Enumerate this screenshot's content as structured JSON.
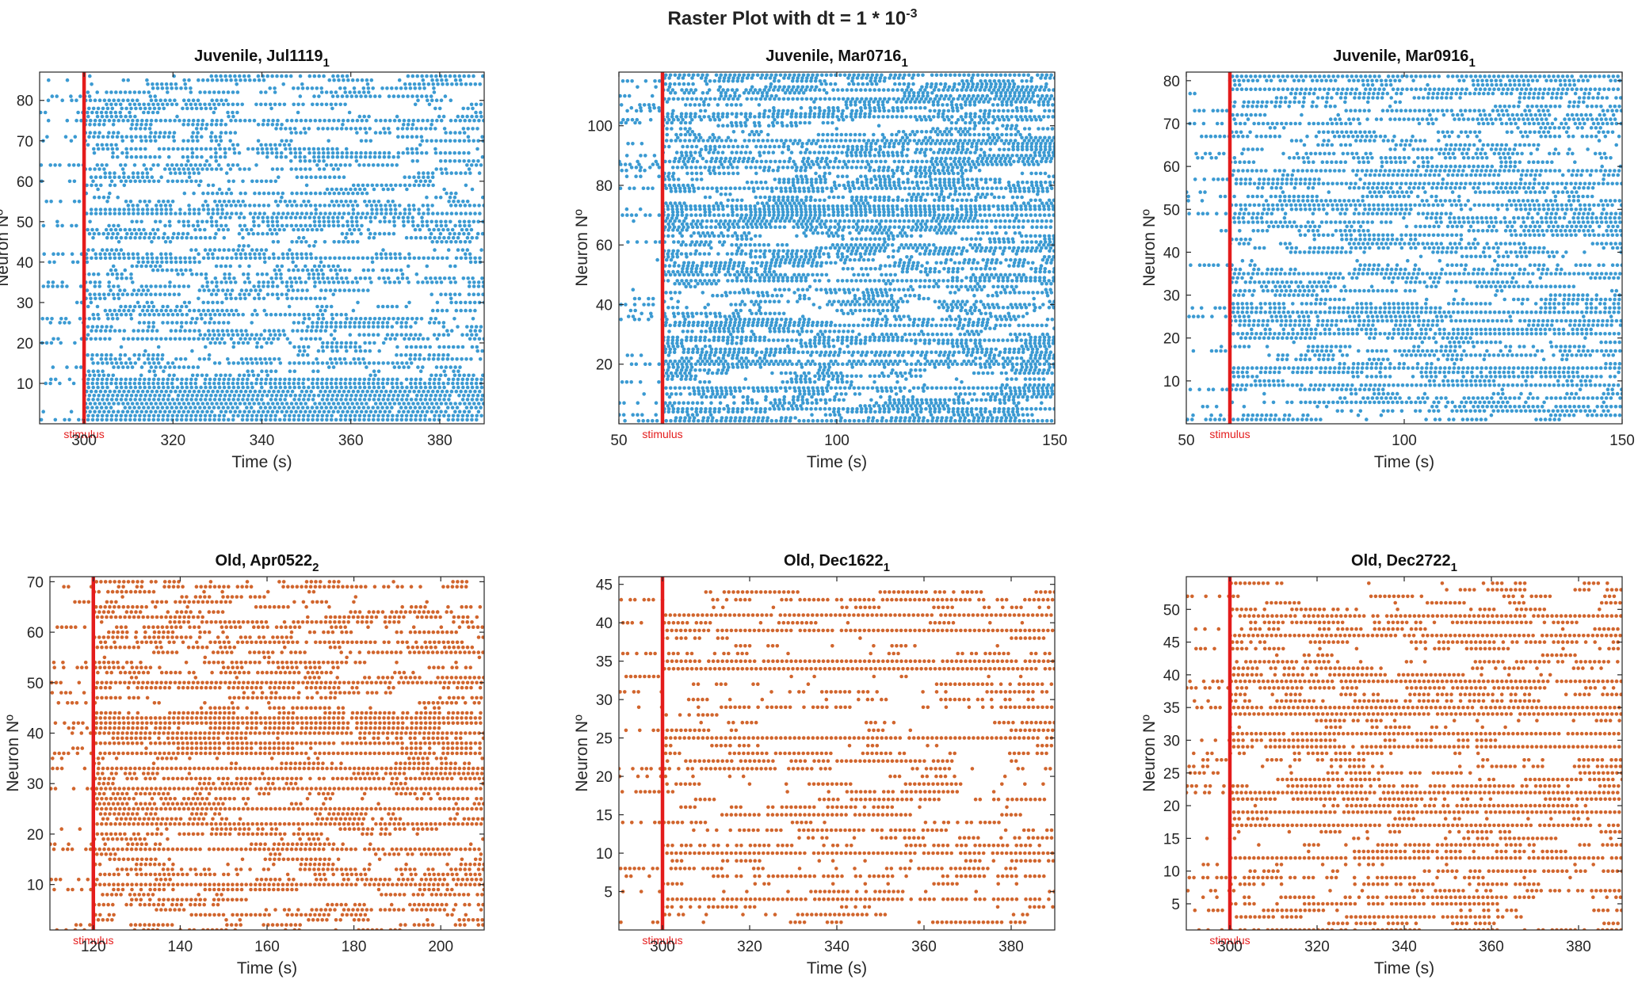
{
  "figure": {
    "title_main": "Raster Plot with dt = 1 * 10",
    "title_exp": "-3",
    "spike_colors": {
      "juvenile": "#3b9ad2",
      "old": "#d1652d"
    },
    "stimulus_color": "#e41c1c"
  },
  "chart_data": [
    {
      "type": "scatter",
      "title": "Juvenile, Jul1119",
      "title_sub": "1",
      "xlabel": "Time (s)",
      "ylabel": "Neuron Nº",
      "xlim": [
        290,
        390
      ],
      "ylim": [
        0,
        87
      ],
      "xticks": [
        300,
        320,
        340,
        360,
        380
      ],
      "yticks": [
        10,
        20,
        30,
        40,
        50,
        60,
        70,
        80
      ],
      "neurons": 86,
      "stimulus": {
        "x": 300,
        "label": "stimulus"
      },
      "series": "juvenile",
      "seed": 11,
      "dense_rows": [
        1,
        2,
        3,
        4,
        5,
        6,
        7,
        8,
        9,
        10,
        11,
        41,
        52,
        75
      ]
    },
    {
      "type": "scatter",
      "title": "Juvenile, Mar0716",
      "title_sub": "1",
      "xlabel": "Time (s)",
      "ylabel": "Neuron Nº",
      "xlim": [
        50,
        150
      ],
      "ylim": [
        0,
        118
      ],
      "xticks": [
        50,
        100,
        150
      ],
      "yticks": [
        20,
        40,
        60,
        80,
        100
      ],
      "neurons": 117,
      "stimulus": {
        "x": 60,
        "label": "stimulus"
      },
      "series": "juvenile",
      "seed": 27,
      "dense_rows": [
        1,
        5,
        12,
        20,
        24,
        28,
        33,
        48,
        66,
        68,
        70,
        72,
        73,
        79,
        88,
        95,
        103,
        109,
        112,
        117
      ]
    },
    {
      "type": "scatter",
      "title": "Juvenile, Mar0916",
      "title_sub": "1",
      "xlabel": "Time (s)",
      "ylabel": "Neuron Nº",
      "xlim": [
        50,
        150
      ],
      "ylim": [
        0,
        82
      ],
      "xticks": [
        50,
        100,
        150
      ],
      "yticks": [
        10,
        20,
        30,
        40,
        50,
        60,
        70,
        80
      ],
      "neurons": 81,
      "stimulus": {
        "x": 60,
        "label": "stimulus"
      },
      "series": "juvenile",
      "seed": 43,
      "dense_rows": [
        9,
        13,
        21,
        24,
        26,
        35,
        51,
        56,
        59,
        78,
        81
      ]
    },
    {
      "type": "scatter",
      "title": "Old, Apr0522",
      "title_sub": "2",
      "xlabel": "Time (s)",
      "ylabel": "Neuron Nº",
      "xlim": [
        110,
        210
      ],
      "ylim": [
        1,
        71
      ],
      "xticks": [
        120,
        140,
        160,
        180,
        200
      ],
      "yticks": [
        10,
        20,
        30,
        40,
        50,
        60,
        70
      ],
      "neurons": 70,
      "stimulus": {
        "x": 120,
        "label": "stimulus"
      },
      "series": "old",
      "seed": 58,
      "dense_rows": [
        10,
        17,
        22,
        25,
        29,
        33,
        36,
        38,
        40,
        42,
        43,
        50
      ]
    },
    {
      "type": "scatter",
      "title": "Old, Dec1622",
      "title_sub": "1",
      "xlabel": "Time (s)",
      "ylabel": "Neuron Nº",
      "xlim": [
        290,
        390
      ],
      "ylim": [
        0,
        46
      ],
      "xticks": [
        300,
        320,
        340,
        360,
        380
      ],
      "yticks": [
        5,
        10,
        15,
        20,
        25,
        30,
        35,
        40,
        45
      ],
      "neurons": 44,
      "stimulus": {
        "x": 300,
        "label": "stimulus"
      },
      "series": "old",
      "seed": 71,
      "dense_rows": [
        10,
        25,
        34,
        35,
        39,
        41
      ]
    },
    {
      "type": "scatter",
      "title": "Old, Dec2722",
      "title_sub": "1",
      "xlabel": "Time (s)",
      "ylabel": "Neuron Nº",
      "xlim": [
        290,
        390
      ],
      "ylim": [
        1,
        55
      ],
      "xticks": [
        300,
        320,
        340,
        360,
        380
      ],
      "yticks": [
        5,
        10,
        15,
        20,
        25,
        30,
        35,
        40,
        45,
        50
      ],
      "neurons": 54,
      "stimulus": {
        "x": 300,
        "label": "stimulus"
      },
      "series": "old",
      "seed": 89,
      "dense_rows": [
        12,
        17,
        19,
        22,
        29,
        31,
        34,
        35,
        39,
        46,
        49
      ]
    }
  ]
}
